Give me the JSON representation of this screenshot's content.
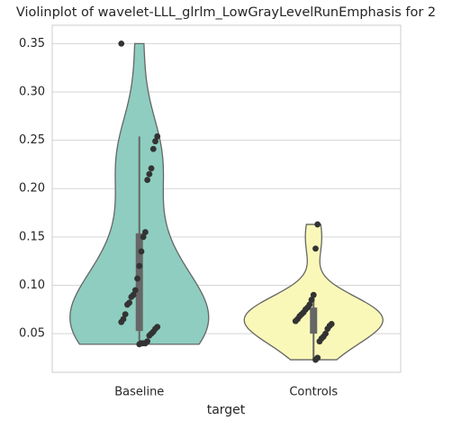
{
  "chart_data": {
    "type": "violin",
    "title": "Violinplot of wavelet-LLL_glrlm_LowGrayLevelRunEmphasis for 2",
    "xlabel": "target",
    "categories": [
      "Baseline",
      "Controls"
    ],
    "colors": [
      "#8ecdc0",
      "#f9f8b8"
    ],
    "values": [
      [
        0.35,
        0.254,
        0.249,
        0.241,
        0.221,
        0.215,
        0.209,
        0.155,
        0.15,
        0.135,
        0.12,
        0.107,
        0.095,
        0.09,
        0.088,
        0.082,
        0.08,
        0.07,
        0.065,
        0.062,
        0.057,
        0.055,
        0.052,
        0.05,
        0.048,
        0.042,
        0.04,
        0.04,
        0.04,
        0.039
      ],
      [
        0.163,
        0.138,
        0.09,
        0.085,
        0.08,
        0.077,
        0.075,
        0.072,
        0.07,
        0.068,
        0.065,
        0.063,
        0.06,
        0.058,
        0.055,
        0.05,
        0.047,
        0.045,
        0.042,
        0.025,
        0.023
      ]
    ],
    "ylim": [
      0.01,
      0.369
    ],
    "yticks": [
      0.05,
      {
        "value": 0.1,
        "label": "0.10"
      },
      0.15,
      {
        "value": 0.2,
        "label": "0.20"
      },
      0.25,
      {
        "value": 0.3,
        "label": "0.30"
      },
      0.35
    ],
    "grid": true
  }
}
